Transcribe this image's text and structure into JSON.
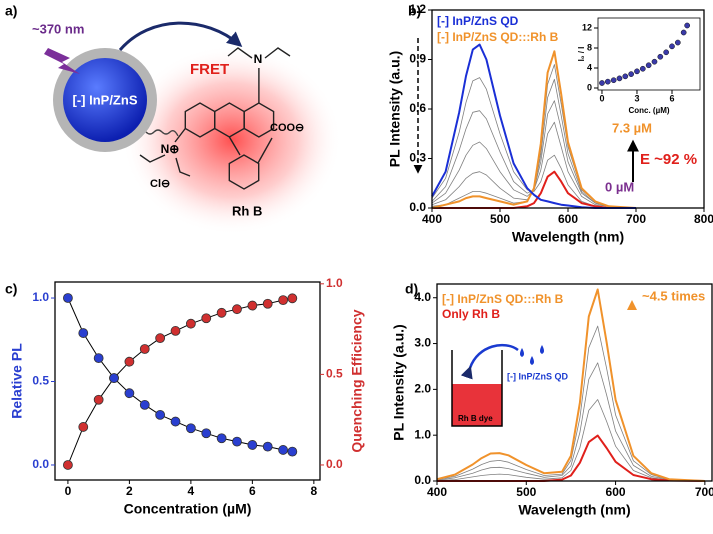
{
  "diagram": {
    "panel_label": "a)",
    "excitation": "~370 nm",
    "core": "[-] InP/ZnS",
    "process": "FRET",
    "dye": "Rh B",
    "carboxylate": "COO⊖",
    "counterion": "Cl⊖",
    "amine": "N",
    "iminium": "N⊕"
  },
  "chart_data": [
    {
      "type": "line",
      "panel_label": "b)",
      "xlabel": "Wavelength (nm)",
      "ylabel": "PL Intensity (a.u.)",
      "x": [
        400,
        420,
        440,
        450,
        460,
        470,
        480,
        500,
        520,
        540,
        550,
        560,
        570,
        580,
        590,
        600,
        620,
        640,
        660,
        700
      ],
      "xlim": [
        400,
        800
      ],
      "xticks": [
        400,
        500,
        600,
        700,
        800
      ],
      "ylim": [
        0,
        1.2
      ],
      "yticks": [
        {
          "value": 0,
          "label": "0.0"
        },
        0.3,
        0.6,
        0.9,
        1.2
      ],
      "series": [
        {
          "name": "[-] InP/ZnS QD",
          "color": "#1a2fd6",
          "values": [
            0.07,
            0.22,
            0.58,
            0.8,
            0.96,
            0.99,
            0.9,
            0.56,
            0.27,
            0.12,
            0.08,
            0.05,
            0.04,
            0.03,
            0.02,
            0.015,
            0.005,
            0,
            0,
            0
          ]
        },
        {
          "name": "[-] InP/ZnS QD:::Rh B",
          "color": "#f0922b",
          "values": [
            0,
            0.02,
            0.04,
            0.06,
            0.07,
            0.07,
            0.06,
            0.04,
            0.02,
            0.04,
            0.12,
            0.39,
            0.82,
            0.95,
            0.69,
            0.4,
            0.12,
            0.04,
            0.01,
            0
          ]
        },
        {
          "color": "#e0201b",
          "values": [
            0,
            0,
            0,
            0,
            0,
            0,
            0,
            0,
            0,
            0.01,
            0.03,
            0.09,
            0.19,
            0.22,
            0.16,
            0.09,
            0.03,
            0.01,
            0,
            0
          ]
        },
        {
          "color": "#808080",
          "values": [
            0.06,
            0.18,
            0.46,
            0.64,
            0.77,
            0.79,
            0.72,
            0.45,
            0.22,
            0.11,
            0.1,
            0.16,
            0.29,
            0.32,
            0.24,
            0.14,
            0.04,
            0.01,
            0,
            0
          ]
        },
        {
          "color": "#808080",
          "values": [
            0.04,
            0.13,
            0.35,
            0.48,
            0.58,
            0.59,
            0.54,
            0.34,
            0.16,
            0.09,
            0.11,
            0.23,
            0.45,
            0.52,
            0.37,
            0.22,
            0.07,
            0.02,
            0.01,
            0
          ]
        },
        {
          "color": "#808080",
          "values": [
            0.03,
            0.09,
            0.23,
            0.32,
            0.38,
            0.4,
            0.36,
            0.22,
            0.11,
            0.07,
            0.11,
            0.28,
            0.57,
            0.65,
            0.48,
            0.28,
            0.09,
            0.03,
            0.01,
            0
          ]
        },
        {
          "color": "#808080",
          "values": [
            0.02,
            0.05,
            0.13,
            0.18,
            0.21,
            0.22,
            0.2,
            0.12,
            0.06,
            0.05,
            0.11,
            0.32,
            0.67,
            0.78,
            0.56,
            0.33,
            0.1,
            0.03,
            0.01,
            0
          ]
        },
        {
          "color": "#808080",
          "values": [
            0.01,
            0.02,
            0.06,
            0.08,
            0.1,
            0.1,
            0.09,
            0.06,
            0.03,
            0.04,
            0.12,
            0.35,
            0.75,
            0.87,
            0.63,
            0.37,
            0.11,
            0.04,
            0.01,
            0
          ]
        }
      ],
      "annotations": [
        {
          "text": "7.3 µM",
          "color": "#f0922b"
        },
        {
          "text": "E ~92 %",
          "color": "#e0201b"
        },
        {
          "text": "0 µM",
          "color": "#7b2f8f"
        }
      ]
    },
    {
      "type": "scatter",
      "xlabel": "Conc. (µM)",
      "ylabel": "I₀ / I",
      "x": [
        0,
        0.5,
        1,
        1.5,
        2,
        2.5,
        3,
        3.5,
        4,
        4.5,
        5,
        5.5,
        6,
        6.5,
        7,
        7.3
      ],
      "values": [
        1,
        1.27,
        1.56,
        1.92,
        2.33,
        2.78,
        3.33,
        3.85,
        4.55,
        5.26,
        6.25,
        7.14,
        8.33,
        9.09,
        11.1,
        12.5
      ],
      "xlim": [
        -0.34,
        8.4
      ],
      "xticks": [
        0,
        3,
        6
      ],
      "ylim": [
        -0.4,
        14
      ],
      "yticks": [
        0,
        4,
        8,
        12
      ],
      "color": "#3a3aa8"
    },
    {
      "type": "line",
      "panel_label": "c)",
      "xlabel": "Concentration (µM)",
      "ylabel": "Relative PL",
      "y2label": "Quenching Efficiency",
      "x": [
        0,
        0.5,
        1,
        1.5,
        2,
        2.5,
        3,
        3.5,
        4,
        4.5,
        5,
        5.5,
        6,
        6.5,
        7,
        7.3
      ],
      "xlim": [
        -0.42,
        8.2
      ],
      "xticks": [
        0,
        2,
        4,
        6,
        8
      ],
      "ylim": [
        -0.09,
        1.096
      ],
      "yticks": [
        {
          "value": 0,
          "label": "0.0"
        },
        0.5,
        {
          "value": 1,
          "label": "1.0"
        }
      ],
      "y2lim": [
        -0.083,
        1.01
      ],
      "y2ticks": [
        {
          "value": 0,
          "label": "0.0"
        },
        0.5,
        {
          "value": 1,
          "label": "1.0"
        }
      ],
      "markers": true,
      "line_color": "#000000",
      "series": [
        {
          "color": "#2a3fd0",
          "values": [
            1,
            0.79,
            0.64,
            0.52,
            0.43,
            0.36,
            0.3,
            0.26,
            0.22,
            0.19,
            0.16,
            0.14,
            0.12,
            0.11,
            0.09,
            0.08
          ]
        },
        {
          "color": "#d03030",
          "axis": "y2",
          "values": [
            0,
            0.21,
            0.36,
            0.48,
            0.57,
            0.64,
            0.7,
            0.74,
            0.78,
            0.81,
            0.84,
            0.86,
            0.88,
            0.89,
            0.91,
            0.92
          ]
        }
      ]
    },
    {
      "type": "line",
      "panel_label": "d)",
      "xlabel": "Wavelength (nm)",
      "ylabel": "PL Intensity (a.u.)",
      "x": [
        400,
        420,
        440,
        450,
        460,
        470,
        480,
        500,
        520,
        540,
        550,
        560,
        570,
        580,
        590,
        600,
        620,
        640,
        660,
        700
      ],
      "xlim": [
        400,
        708
      ],
      "xticks": [
        400,
        500,
        600,
        700
      ],
      "ylim": [
        0,
        4.3
      ],
      "yticks": [
        {
          "value": 0,
          "label": "0.0"
        },
        {
          "value": 1,
          "label": "1.0"
        },
        {
          "value": 2,
          "label": "2.0"
        },
        {
          "value": 3,
          "label": "3.0"
        },
        {
          "value": 4,
          "label": "4.0"
        }
      ],
      "series": [
        {
          "name": "[-] InP/ZnS QD:::Rh B",
          "color": "#f0922b",
          "values": [
            0.04,
            0.14,
            0.36,
            0.5,
            0.6,
            0.61,
            0.56,
            0.35,
            0.17,
            0.2,
            0.55,
            1.71,
            3.59,
            4.18,
            3.03,
            1.77,
            0.55,
            0.17,
            0.04,
            0
          ]
        },
        {
          "name": "Only Rh B",
          "color": "#e0201b",
          "values": [
            0,
            0,
            0,
            0,
            0,
            0,
            0,
            0,
            0,
            0.03,
            0.12,
            0.4,
            0.85,
            0.99,
            0.72,
            0.42,
            0.13,
            0.04,
            0.01,
            0
          ]
        },
        {
          "color": "#808080",
          "values": [
            0.01,
            0.03,
            0.09,
            0.12,
            0.14,
            0.15,
            0.14,
            0.08,
            0.04,
            0.07,
            0.23,
            0.73,
            1.54,
            1.78,
            1.3,
            0.76,
            0.23,
            0.07,
            0.02,
            0
          ]
        },
        {
          "color": "#808080",
          "values": [
            0.02,
            0.07,
            0.17,
            0.24,
            0.29,
            0.3,
            0.27,
            0.17,
            0.08,
            0.12,
            0.33,
            1.06,
            2.22,
            2.58,
            1.88,
            1.09,
            0.34,
            0.1,
            0.03,
            0
          ]
        },
        {
          "color": "#808080",
          "values": [
            0.03,
            0.1,
            0.26,
            0.36,
            0.43,
            0.45,
            0.41,
            0.25,
            0.12,
            0.15,
            0.45,
            1.38,
            2.91,
            3.38,
            2.46,
            1.44,
            0.44,
            0.14,
            0.03,
            0
          ]
        }
      ],
      "annotations": [
        {
          "text": "~4.5 times",
          "color": "#f0922b"
        }
      ],
      "inset": {
        "label": "[-] InP/ZnS QD",
        "vessel": "Rh B dye"
      }
    }
  ]
}
